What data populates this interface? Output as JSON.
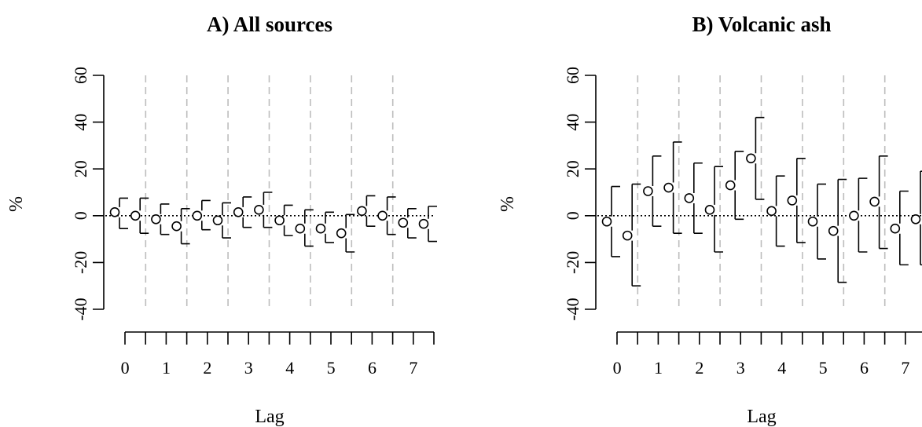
{
  "chart_data": [
    {
      "type": "scatter",
      "title": "A) All sources",
      "xlabel": "Lag",
      "ylabel": "%",
      "ylim": [
        -40,
        60
      ],
      "yticks": [
        -40,
        -20,
        0,
        20,
        40,
        60
      ],
      "categories": [
        "0",
        "1",
        "2",
        "3",
        "4",
        "5",
        "6",
        "7"
      ],
      "reference_line": 0,
      "points": [
        {
          "lag": 0,
          "y": 1.5,
          "lo": -5.5,
          "hi": 7.5
        },
        {
          "lag": 0,
          "y": 0,
          "lo": -7.5,
          "hi": 7.5
        },
        {
          "lag": 1,
          "y": -1.5,
          "lo": -8,
          "hi": 5
        },
        {
          "lag": 1,
          "y": -4.5,
          "lo": -12,
          "hi": 3
        },
        {
          "lag": 2,
          "y": 0,
          "lo": -6,
          "hi": 6.5
        },
        {
          "lag": 2,
          "y": -2,
          "lo": -9.5,
          "hi": 5.5
        },
        {
          "lag": 3,
          "y": 1.5,
          "lo": -5,
          "hi": 8
        },
        {
          "lag": 3,
          "y": 2.5,
          "lo": -5,
          "hi": 10
        },
        {
          "lag": 4,
          "y": -2,
          "lo": -8.5,
          "hi": 4.5
        },
        {
          "lag": 4,
          "y": -5.5,
          "lo": -13,
          "hi": 2.5
        },
        {
          "lag": 5,
          "y": -5.5,
          "lo": -11.5,
          "hi": 1.5
        },
        {
          "lag": 5,
          "y": -7.5,
          "lo": -15.5,
          "hi": 0.5
        },
        {
          "lag": 6,
          "y": 2,
          "lo": -4.5,
          "hi": 8.5
        },
        {
          "lag": 6,
          "y": 0,
          "lo": -8,
          "hi": 8
        },
        {
          "lag": 7,
          "y": -3,
          "lo": -9.5,
          "hi": 3
        },
        {
          "lag": 7,
          "y": -3.5,
          "lo": -11,
          "hi": 4
        }
      ]
    },
    {
      "type": "scatter",
      "title": "B) Volcanic ash",
      "xlabel": "Lag",
      "ylabel": "%",
      "ylim": [
        -40,
        60
      ],
      "yticks": [
        -40,
        -20,
        0,
        20,
        40,
        60
      ],
      "categories": [
        "0",
        "1",
        "2",
        "3",
        "4",
        "5",
        "6",
        "7"
      ],
      "reference_line": 0,
      "points": [
        {
          "lag": 0,
          "y": -2.5,
          "lo": -17.5,
          "hi": 12.5
        },
        {
          "lag": 0,
          "y": -8.5,
          "lo": -30,
          "hi": 13.5
        },
        {
          "lag": 1,
          "y": 10.5,
          "lo": -4.5,
          "hi": 25.5
        },
        {
          "lag": 1,
          "y": 12,
          "lo": -7.5,
          "hi": 31.5
        },
        {
          "lag": 2,
          "y": 7.5,
          "lo": -7.5,
          "hi": 22.5
        },
        {
          "lag": 2,
          "y": 2.5,
          "lo": -15.5,
          "hi": 21
        },
        {
          "lag": 3,
          "y": 13,
          "lo": -1.5,
          "hi": 27.5
        },
        {
          "lag": 3,
          "y": 24.5,
          "lo": 7,
          "hi": 42
        },
        {
          "lag": 4,
          "y": 2,
          "lo": -13,
          "hi": 17
        },
        {
          "lag": 4,
          "y": 6.5,
          "lo": -11.5,
          "hi": 24.5
        },
        {
          "lag": 5,
          "y": -2.5,
          "lo": -18.5,
          "hi": 13.5
        },
        {
          "lag": 5,
          "y": -6.5,
          "lo": -28.5,
          "hi": 15.5
        },
        {
          "lag": 6,
          "y": 0,
          "lo": -15.5,
          "hi": 16
        },
        {
          "lag": 6,
          "y": 6,
          "lo": -14,
          "hi": 25.5
        },
        {
          "lag": 7,
          "y": -5.5,
          "lo": -21,
          "hi": 10.5
        },
        {
          "lag": 7,
          "y": -1.5,
          "lo": -21,
          "hi": 19
        }
      ]
    }
  ]
}
